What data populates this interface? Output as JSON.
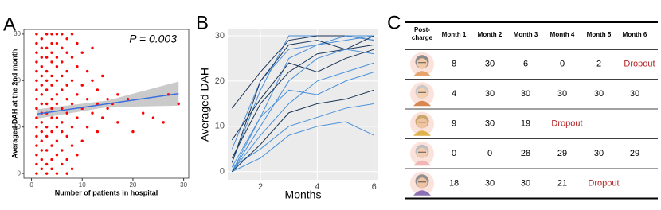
{
  "panels": [
    "A",
    "B",
    "C"
  ],
  "chart_data": [
    {
      "type": "scatter",
      "annotation": "P = 0.003",
      "x_label": "Number of patients in hospital",
      "y_label": "Averaged DAH at the 2nd month",
      "xlim": [
        -1.5,
        31
      ],
      "ylim": [
        -1,
        31
      ],
      "xticks": [
        0,
        10,
        20,
        30
      ],
      "yticks": [
        0,
        10,
        20,
        30
      ],
      "color": "#ff0000",
      "x": [
        1,
        1,
        1,
        1,
        1,
        1,
        1,
        1,
        1,
        1,
        1,
        1,
        1,
        1,
        1,
        1,
        2,
        2,
        2,
        2,
        2,
        2,
        2,
        2,
        2,
        2,
        2,
        2,
        2,
        2,
        2,
        3,
        3,
        3,
        3,
        3,
        3,
        3,
        3,
        3,
        3,
        3,
        3,
        3,
        4,
        4,
        4,
        4,
        4,
        4,
        4,
        4,
        4,
        4,
        4,
        4,
        4,
        5,
        5,
        5,
        5,
        5,
        5,
        5,
        5,
        5,
        5,
        5,
        5,
        6,
        6,
        6,
        6,
        6,
        6,
        6,
        6,
        6,
        6,
        7,
        7,
        7,
        7,
        7,
        7,
        7,
        7,
        7,
        8,
        8,
        8,
        8,
        8,
        8,
        8,
        9,
        9,
        9,
        9,
        9,
        10,
        10,
        10,
        10,
        11,
        11,
        11,
        12,
        12,
        12,
        13,
        13,
        13,
        14,
        14,
        15,
        15,
        16,
        17,
        17,
        19,
        20,
        22,
        24,
        26,
        27,
        29
      ],
      "values": [
        0,
        2,
        4,
        6,
        8,
        10,
        12,
        14,
        16,
        18,
        20,
        22,
        24,
        26,
        28,
        30,
        1,
        3,
        5,
        7,
        9,
        11,
        13,
        15,
        17,
        19,
        21,
        23,
        25,
        27,
        29,
        0,
        2,
        5,
        8,
        10,
        13,
        15,
        18,
        20,
        22,
        25,
        27,
        30,
        1,
        3,
        6,
        9,
        12,
        14,
        16,
        19,
        21,
        24,
        26,
        28,
        30,
        0,
        4,
        7,
        10,
        12,
        15,
        17,
        20,
        23,
        25,
        28,
        30,
        2,
        5,
        9,
        11,
        14,
        18,
        21,
        24,
        27,
        30,
        0,
        3,
        8,
        13,
        16,
        19,
        22,
        26,
        29,
        1,
        6,
        10,
        15,
        20,
        25,
        30,
        4,
        12,
        17,
        23,
        28,
        7,
        14,
        19,
        26,
        10,
        16,
        22,
        13,
        20,
        27,
        9,
        15,
        18,
        12,
        21,
        14,
        16,
        15,
        11,
        17,
        16,
        9,
        13,
        12,
        11,
        17,
        15
      ],
      "fit": {
        "color": "#3b6fe0",
        "band_color": "#b3b3b3",
        "x": [
          1,
          15,
          29
        ],
        "values": [
          12.8,
          15,
          17.2
        ],
        "lower": [
          11.8,
          14.3,
          14.6
        ],
        "upper": [
          13.8,
          15.7,
          19.8
        ]
      }
    },
    {
      "type": "line",
      "x_label": "Months",
      "y_label": "Averaged DAH",
      "xlim": [
        0.85,
        6.15
      ],
      "ylim": [
        -1.8,
        31.4
      ],
      "xticks": [
        2,
        4,
        6
      ],
      "yticks": [
        0,
        10,
        20,
        30
      ],
      "grid": true,
      "x": [
        1,
        2,
        3,
        4,
        5,
        6
      ],
      "series": [
        {
          "color": "#4a90d9",
          "values": [
            0,
            12,
            25,
            28,
            29,
            30
          ]
        },
        {
          "color": "#4a90d9",
          "values": [
            2,
            18,
            30,
            30,
            30,
            30
          ]
        },
        {
          "color": "#4a90d9",
          "values": [
            0,
            8,
            15,
            20,
            22,
            24
          ]
        },
        {
          "color": "#1c3557",
          "values": [
            14,
            22,
            29,
            30,
            30,
            29
          ]
        },
        {
          "color": "#4a90d9",
          "values": [
            1,
            5,
            10,
            12,
            14,
            15
          ]
        },
        {
          "color": "#1c3557",
          "values": [
            3,
            15,
            22,
            26,
            27,
            28
          ]
        },
        {
          "color": "#4a90d9",
          "values": [
            0,
            10,
            20,
            25,
            27,
            26
          ]
        },
        {
          "color": "#4a90d9",
          "values": [
            5,
            20,
            27,
            28,
            30,
            29
          ]
        },
        {
          "color": "#4a90d9",
          "values": [
            0,
            3,
            8,
            10,
            11,
            8
          ]
        },
        {
          "color": "#1c3557",
          "values": [
            7,
            16,
            24,
            22,
            25,
            27
          ]
        },
        {
          "color": "#4a90d9",
          "values": [
            1,
            12,
            18,
            17,
            20,
            22
          ]
        },
        {
          "color": "#1c3557",
          "values": [
            0,
            6,
            13,
            15,
            16,
            18
          ]
        },
        {
          "color": "#1c3557",
          "values": [
            2,
            20,
            28,
            29,
            27,
            30
          ]
        }
      ]
    }
  ],
  "table": {
    "header": [
      "Month 1",
      "Month 2",
      "Month 3",
      "Month 4",
      "Month 5",
      "Month 6"
    ],
    "corner": [
      "Post-",
      "charge"
    ],
    "rows": [
      [
        8,
        30,
        6,
        0,
        2,
        "Dropout"
      ],
      [
        4,
        30,
        30,
        30,
        30,
        30
      ],
      [
        9,
        30,
        19,
        "Dropout"
      ],
      [
        0,
        0,
        28,
        29,
        30,
        29
      ],
      [
        18,
        30,
        30,
        21,
        "Dropout"
      ]
    ]
  }
}
